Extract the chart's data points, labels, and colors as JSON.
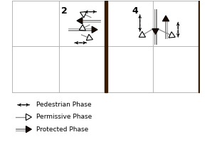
{
  "phase2_label": "2",
  "phase4_label": "4",
  "legend_items": [
    {
      "label": "Pedestrian Phase"
    },
    {
      "label": "Permissive Phase"
    },
    {
      "label": "Protected Phase"
    }
  ],
  "dark_bar_color": "#3a1a00",
  "grid_color": "#aaaaaa",
  "arrow_gray": "#888888"
}
